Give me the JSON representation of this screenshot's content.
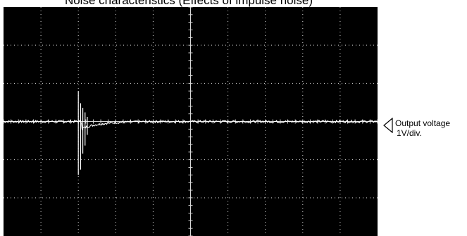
{
  "chart_data": {
    "type": "line",
    "title": "Noise characteristics  (Effects of impulse noise)",
    "grid": true,
    "divisions": {
      "x": 10,
      "y": 6
    },
    "ylim_div": [
      -3,
      3
    ],
    "series": [
      {
        "name": "Output voltage",
        "baseline_div": 0,
        "impulse": {
          "x_div": 2.0,
          "peak_positive_div": 0.8,
          "peak_negative_div": -1.4
        },
        "settling": {
          "undershoot_div": -0.18,
          "recovered_by_x_div": 4.0
        }
      }
    ],
    "channel": {
      "label": "Output voltage",
      "scale": "1V/div."
    },
    "colors": {
      "screen": "#000000",
      "grid": "#d8d8d8",
      "trace": "#ffffff"
    }
  }
}
